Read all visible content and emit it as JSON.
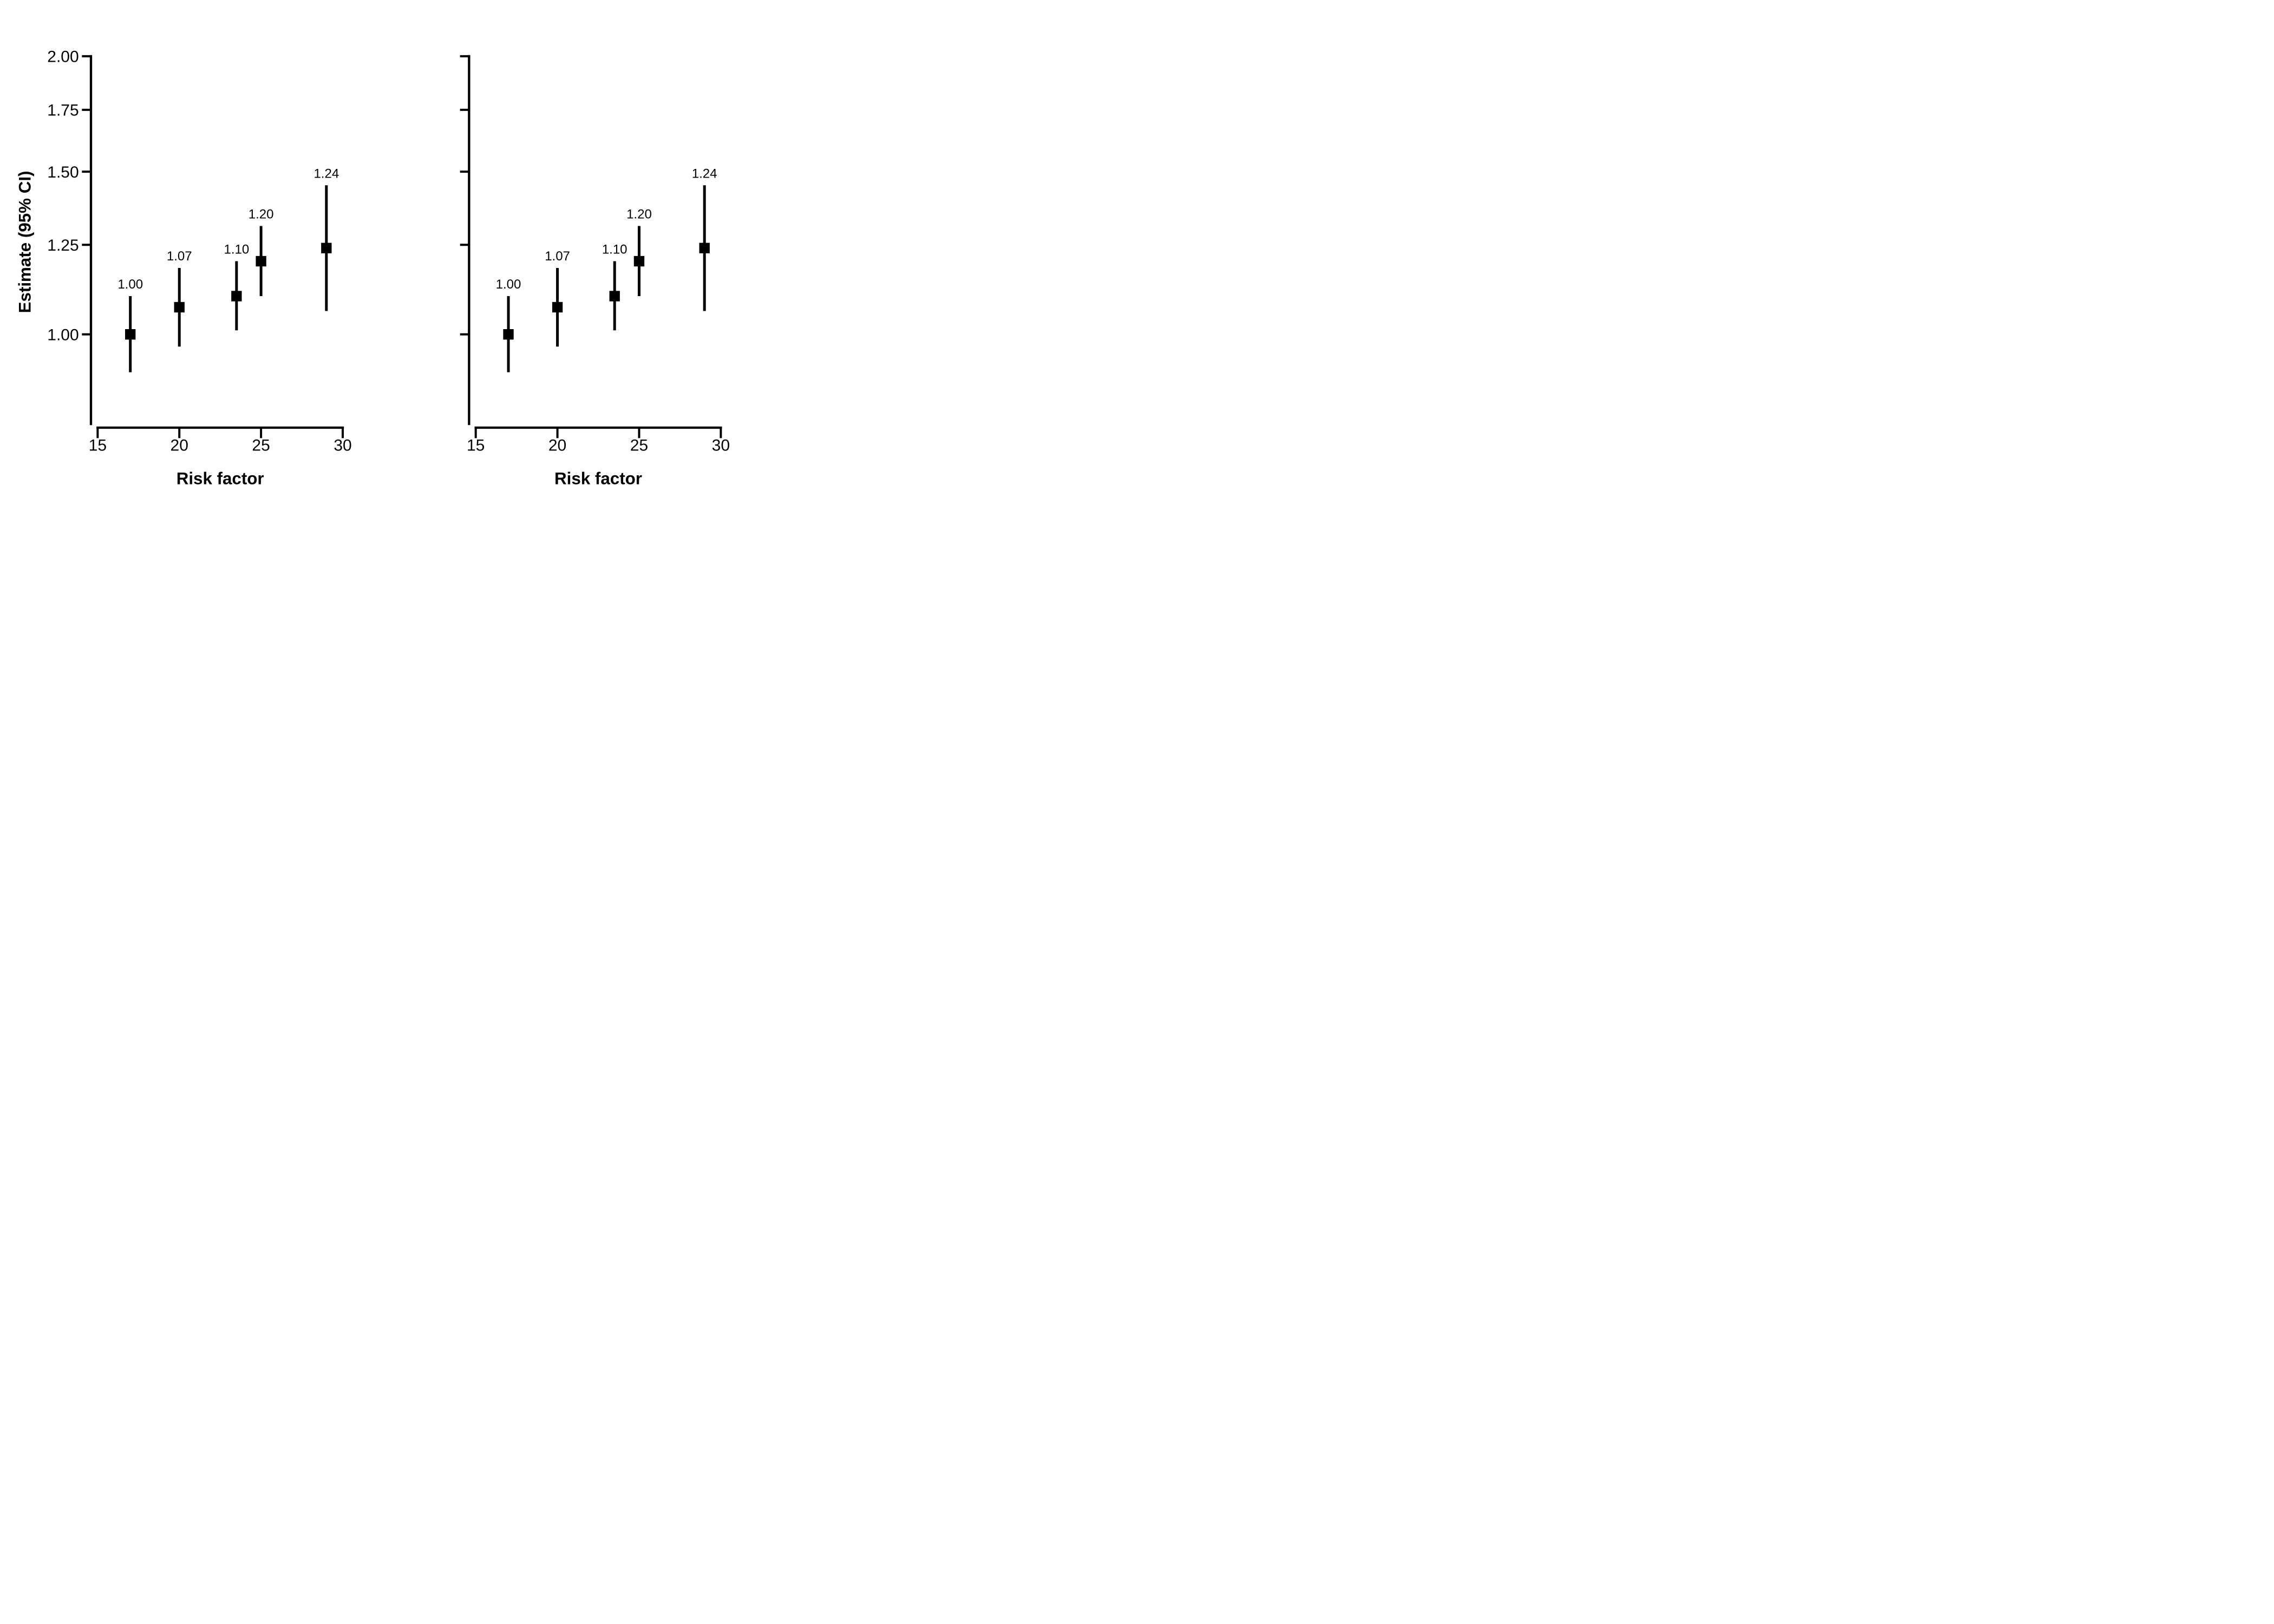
{
  "figure": {
    "background_color": "#ffffff",
    "ink_color": "#000000",
    "description": "Two side-by-side forest-style shape plots of estimates with 95% confidence intervals versus a risk factor"
  },
  "chart_data": [
    {
      "type": "scatter",
      "panel": "left",
      "title": "",
      "xlabel": "Risk factor",
      "ylabel": "Estimate (95% CI)",
      "x_ticks": [
        15,
        20,
        25,
        30
      ],
      "x_tick_labels": [
        "15",
        "20",
        "25",
        "30"
      ],
      "y_ticks": [
        1.0,
        1.25,
        1.5,
        1.75,
        2.0
      ],
      "y_tick_labels": [
        "1.00",
        "1.25",
        "1.50",
        "1.75",
        "2.00"
      ],
      "y_tick_labels_shown": true,
      "xlim": [
        15,
        30
      ],
      "ylim": [
        0.8,
        2.0
      ],
      "y_scale": "log",
      "grid": false,
      "legend": "none",
      "marker": "filled-square",
      "points": [
        {
          "x": 17,
          "estimate": 1.0,
          "lower": 0.91,
          "upper": 1.1,
          "label": "1.00"
        },
        {
          "x": 20,
          "estimate": 1.07,
          "lower": 0.97,
          "upper": 1.18,
          "label": "1.07"
        },
        {
          "x": 23.5,
          "estimate": 1.1,
          "lower": 1.01,
          "upper": 1.2,
          "label": "1.10"
        },
        {
          "x": 25,
          "estimate": 1.2,
          "lower": 1.1,
          "upper": 1.31,
          "label": "1.20"
        },
        {
          "x": 29,
          "estimate": 1.24,
          "lower": 1.06,
          "upper": 1.45,
          "label": "1.24"
        }
      ]
    },
    {
      "type": "scatter",
      "panel": "right",
      "title": "",
      "xlabel": "Risk factor",
      "ylabel": "",
      "x_ticks": [
        15,
        20,
        25,
        30
      ],
      "x_tick_labels": [
        "15",
        "20",
        "25",
        "30"
      ],
      "y_ticks": [
        1.0,
        1.25,
        1.5,
        1.75,
        2.0
      ],
      "y_tick_labels": [],
      "y_tick_labels_shown": false,
      "xlim": [
        15,
        30
      ],
      "ylim": [
        0.8,
        2.0
      ],
      "y_scale": "log",
      "grid": false,
      "legend": "none",
      "marker": "filled-square",
      "points": [
        {
          "x": 17,
          "estimate": 1.0,
          "lower": 0.91,
          "upper": 1.1,
          "label": "1.00"
        },
        {
          "x": 20,
          "estimate": 1.07,
          "lower": 0.97,
          "upper": 1.18,
          "label": "1.07"
        },
        {
          "x": 23.5,
          "estimate": 1.1,
          "lower": 1.01,
          "upper": 1.2,
          "label": "1.10"
        },
        {
          "x": 25,
          "estimate": 1.2,
          "lower": 1.1,
          "upper": 1.31,
          "label": "1.20"
        },
        {
          "x": 29,
          "estimate": 1.24,
          "lower": 1.06,
          "upper": 1.45,
          "label": "1.24"
        }
      ]
    }
  ]
}
